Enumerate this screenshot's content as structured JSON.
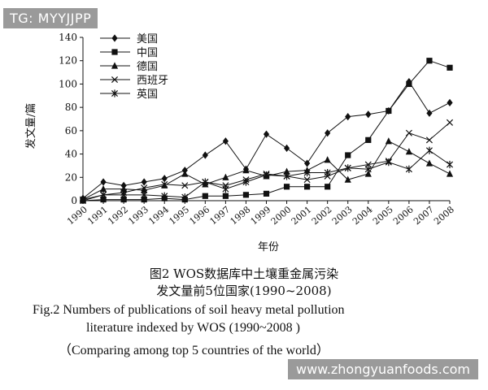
{
  "watermark_top": "TG: MYYJJPP",
  "watermark_bottom": "www.zhongyuanfoods.com",
  "caption": {
    "cn_line1": "图2 WOS数据库中土壤重金属污染",
    "cn_line2": "发文量前5位国家(1990~2008)",
    "en_line1": "Fig.2  Numbers of publications of soil heavy metal pollution",
    "en_line2": "literature indexed by WOS (1990~2008 )",
    "en_line3": "（Comparing among top 5 countries of the world）"
  },
  "chart_data": {
    "type": "line",
    "title": "",
    "xlabel": "年份",
    "ylabel": "发文量/篇",
    "ylim": [
      0,
      140
    ],
    "yticks": [
      0,
      20,
      40,
      60,
      80,
      100,
      120,
      140
    ],
    "categories": [
      "1990",
      "1991",
      "1992",
      "1993",
      "1994",
      "1995",
      "1996",
      "1997",
      "1998",
      "1999",
      "2000",
      "2001",
      "2002",
      "2003",
      "2004",
      "2005",
      "2006",
      "2007",
      "2008"
    ],
    "legend_position": "top-left",
    "series": [
      {
        "name": "美国",
        "marker": "diamond",
        "values": [
          2,
          16,
          13,
          16,
          19,
          26,
          39,
          51,
          27,
          57,
          45,
          32,
          58,
          72,
          74,
          77,
          102,
          75,
          84
        ]
      },
      {
        "name": "中国",
        "marker": "square",
        "values": [
          0,
          1,
          1,
          1,
          2,
          1,
          4,
          4,
          5,
          6,
          12,
          12,
          12,
          39,
          52,
          77,
          100,
          120,
          114
        ]
      },
      {
        "name": "德国",
        "marker": "triangle",
        "values": [
          1,
          10,
          10,
          9,
          13,
          23,
          14,
          20,
          26,
          21,
          25,
          26,
          35,
          18,
          23,
          51,
          42,
          32,
          23
        ]
      },
      {
        "name": "西班牙",
        "marker": "x",
        "values": [
          0,
          5,
          7,
          11,
          14,
          13,
          16,
          13,
          18,
          23,
          21,
          18,
          21,
          28,
          31,
          34,
          58,
          52,
          67
        ]
      },
      {
        "name": "英国",
        "marker": "star",
        "values": [
          1,
          5,
          5,
          5,
          4,
          3,
          16,
          10,
          16,
          22,
          21,
          24,
          24,
          28,
          27,
          33,
          27,
          43,
          31
        ]
      }
    ]
  }
}
